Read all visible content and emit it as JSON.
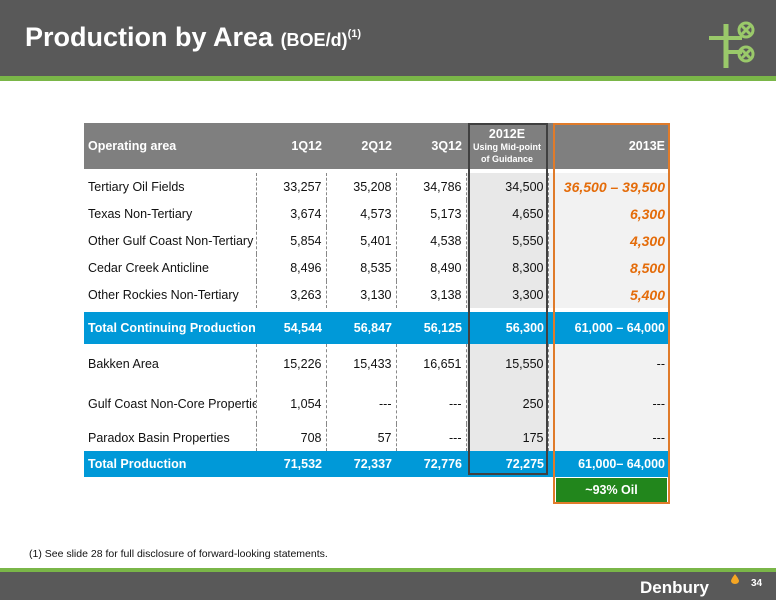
{
  "slide": {
    "title": "Production by Area",
    "title_unit": "(BOE/d)",
    "title_sup": "(1)",
    "footnote": "(1)   See slide 28 for full disclosure of forward-looking statements.",
    "brand": "Denbury",
    "page_number": "34",
    "colors": {
      "header": "#595959",
      "accent_green": "#7ab648",
      "total_blue": "#0099d8",
      "guidance_orange": "#e46c0a",
      "oil_green": "#22861c"
    }
  },
  "table": {
    "headers": {
      "area": "Operating area",
      "q1": "1Q12",
      "q2": "2Q12",
      "q3": "3Q12",
      "e2012": "2012E",
      "e2012_note": "Using Mid-point of Guidance",
      "e2013": "2013E"
    },
    "rows": [
      {
        "area": "Tertiary Oil Fields",
        "q1": "33,257",
        "q2": "35,208",
        "q3": "34,786",
        "e2012": "34,500",
        "e2013": "36,500 – 39,500"
      },
      {
        "area": "Texas Non-Tertiary",
        "q1": "3,674",
        "q2": "4,573",
        "q3": "5,173",
        "e2012": "4,650",
        "e2013": "6,300"
      },
      {
        "area": "Other Gulf Coast Non-Tertiary",
        "q1": "5,854",
        "q2": "5,401",
        "q3": "4,538",
        "e2012": "5,550",
        "e2013": "4,300"
      },
      {
        "area": "Cedar Creek Anticline",
        "q1": "8,496",
        "q2": "8,535",
        "q3": "8,490",
        "e2012": "8,300",
        "e2013": "8,500"
      },
      {
        "area": "Other Rockies Non-Tertiary",
        "q1": "3,263",
        "q2": "3,130",
        "q3": "3,138",
        "e2012": "3,300",
        "e2013": "5,400"
      }
    ],
    "total_continuing": {
      "area": "Total Continuing Production",
      "q1": "54,544",
      "q2": "56,847",
      "q3": "56,125",
      "e2012": "56,300",
      "e2013": "61,000 – 64,000"
    },
    "other_rows": [
      {
        "area": "Bakken Area",
        "q1": "15,226",
        "q2": "15,433",
        "q3": "16,651",
        "e2012": "15,550",
        "e2013": "--"
      },
      {
        "area": "Gulf Coast Non-Core Properties",
        "q1": "1,054",
        "q2": "---",
        "q3": "---",
        "e2012": "250",
        "e2013": "---"
      },
      {
        "area": "Paradox Basin Properties",
        "q1": "708",
        "q2": "57",
        "q3": "---",
        "e2012": "175",
        "e2013": "---"
      }
    ],
    "total_production": {
      "area": "Total Production",
      "q1": "71,532",
      "q2": "72,337",
      "q3": "72,776",
      "e2012": "72,275",
      "e2013": "61,000– 64,000"
    },
    "oil_badge": "~93% Oil"
  }
}
